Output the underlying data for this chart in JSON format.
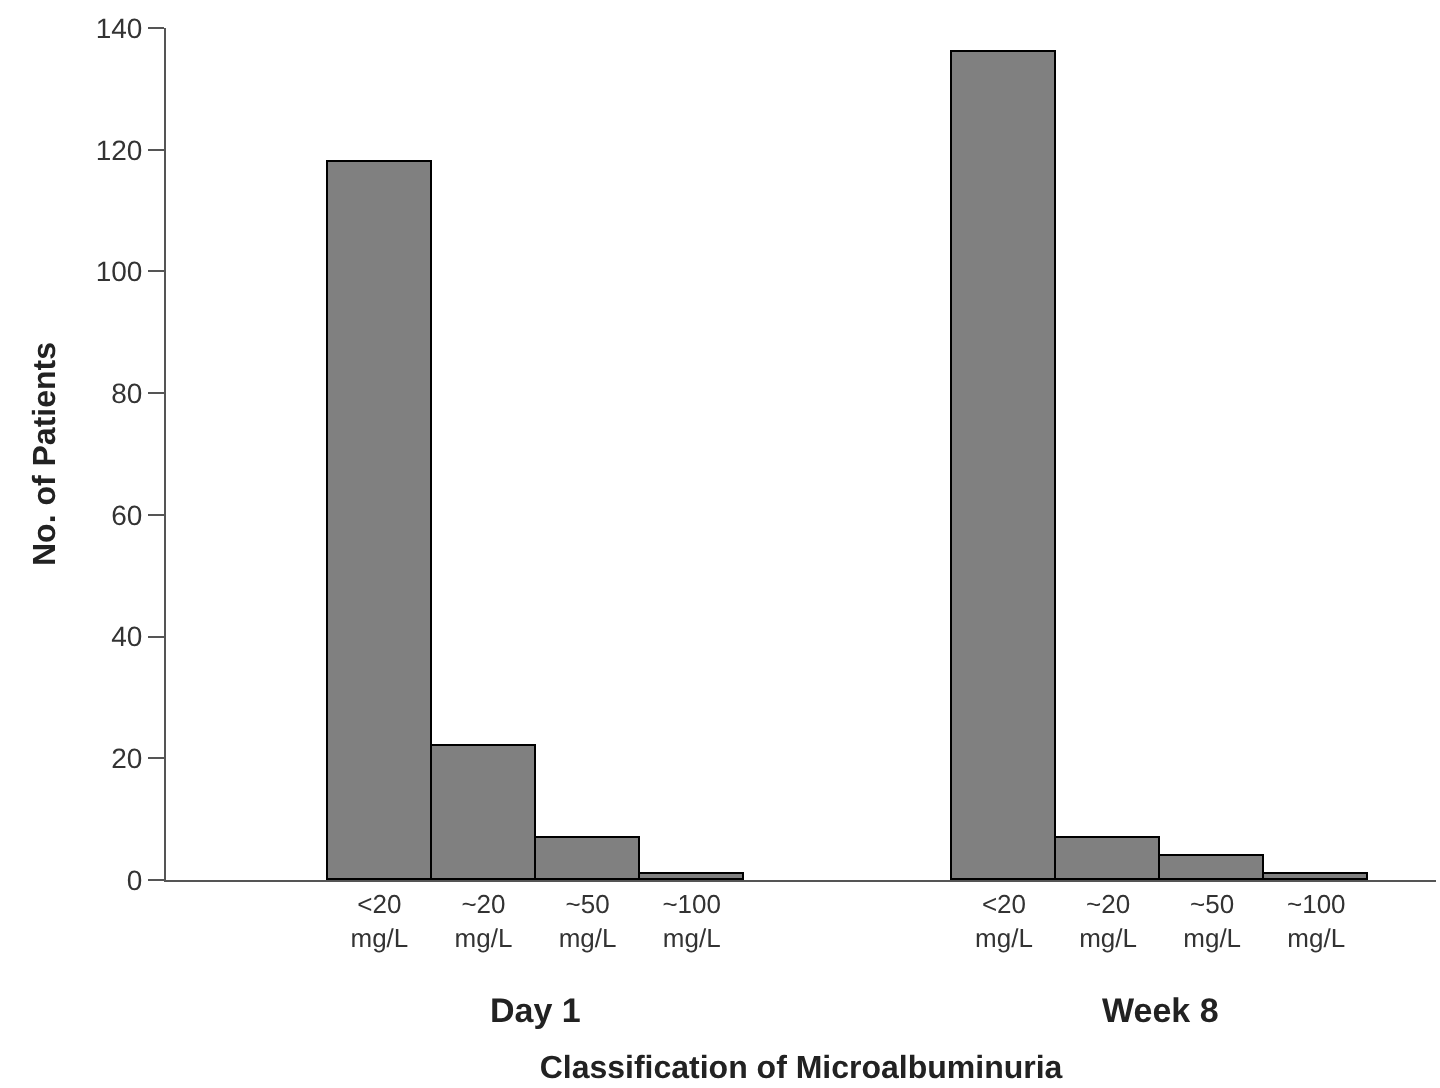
{
  "chart_data": {
    "type": "bar",
    "xlabel": "Classification of Microalbuminuria",
    "ylabel": "No. of Patients",
    "categories": [
      null,
      "<20 mg/L",
      "~20 mg/L",
      "~50 mg/L",
      "~100 mg/L",
      null,
      null,
      "<20 mg/L",
      "~20 mg/L",
      "~50 mg/L",
      "~100 mg/L",
      null
    ],
    "values": [
      null,
      118,
      22,
      7,
      1,
      null,
      null,
      136,
      7,
      4,
      1,
      null
    ],
    "color": "#808080",
    "ylim": [
      0,
      140
    ],
    "yticks": [
      0,
      20,
      40,
      60,
      80,
      100,
      120,
      140
    ],
    "annotations": [
      "Day 1",
      "Week 8"
    ]
  }
}
